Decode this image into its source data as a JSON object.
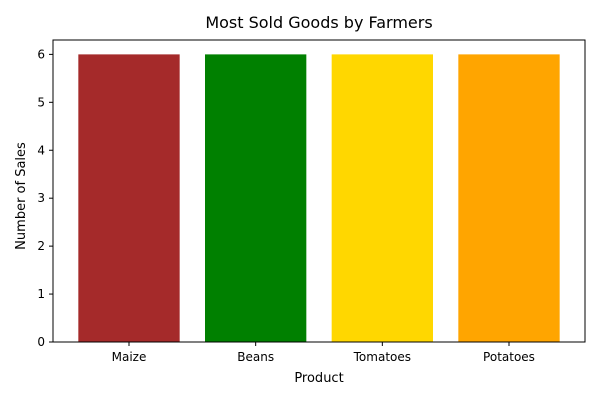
{
  "chart_data": {
    "type": "bar",
    "title": "Most Sold Goods by Farmers",
    "xlabel": "Product",
    "ylabel": "Number of Sales",
    "categories": [
      "Maize",
      "Beans",
      "Tomatoes",
      "Potatoes"
    ],
    "values": [
      6,
      6,
      6,
      6
    ],
    "colors": [
      "#a52a2a",
      "#008000",
      "#ffd700",
      "#ffa500"
    ],
    "ylim": [
      0,
      6.3
    ],
    "yticks": [
      0,
      1,
      2,
      3,
      4,
      5,
      6
    ],
    "grid": false,
    "legend": false
  }
}
